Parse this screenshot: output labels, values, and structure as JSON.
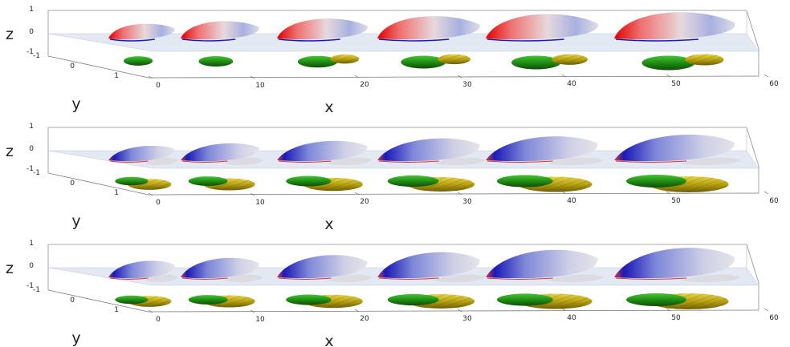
{
  "figure": {
    "panels": [
      {
        "id": "top",
        "axis_labels": {
          "x": "x",
          "y": "y",
          "z": "z"
        },
        "x_ticks": [
          "0",
          "10",
          "20",
          "30",
          "40",
          "50",
          "60"
        ],
        "y_ticks": [
          "-1",
          "0",
          "1"
        ],
        "z_ticks": [
          "1",
          "0",
          "-1"
        ]
      },
      {
        "id": "middle",
        "axis_labels": {
          "x": "x",
          "y": "y",
          "z": "z"
        },
        "x_ticks": [
          "0",
          "10",
          "20",
          "30",
          "40",
          "50",
          "60"
        ],
        "y_ticks": [
          "-1",
          "0",
          "1"
        ],
        "z_ticks": [
          "1",
          "0",
          "-1"
        ]
      },
      {
        "id": "bottom",
        "axis_labels": {
          "x": "x",
          "y": "y",
          "z": "z"
        },
        "x_ticks": [
          "0",
          "10",
          "20",
          "30",
          "40",
          "50",
          "60"
        ],
        "y_ticks": [
          "-1",
          "0",
          "1"
        ],
        "z_ticks": [
          "1",
          "0",
          "-1"
        ]
      }
    ],
    "colors": {
      "positive": "#e00000",
      "negative": "#1a1ab8",
      "neutral": "#dedede",
      "iso_green": "#1f8f12",
      "iso_gold": "#b9a312",
      "plane": "#dfe6f2"
    }
  }
}
